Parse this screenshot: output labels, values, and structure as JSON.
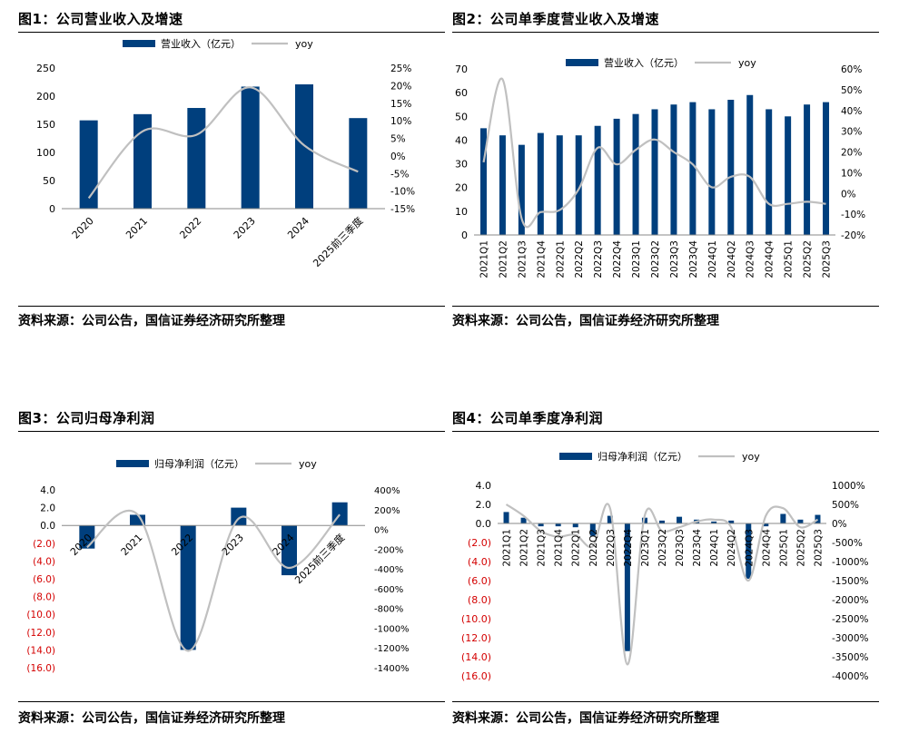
{
  "colors": {
    "bar": "#003f7d",
    "line": "#c0c0c0",
    "neg": "#d40000",
    "axis": "#000000"
  },
  "chart_data": [
    {
      "type": "bar",
      "title": "图1：公司营业收入及增速",
      "source": "资料来源：公司公告，国信证券经济研究所整理",
      "legend": {
        "bar": "营业收入（亿元）",
        "line": "yoy"
      },
      "categories": [
        "2020",
        "2021",
        "2022",
        "2023",
        "2024",
        "2025前三季度"
      ],
      "values": [
        157,
        168,
        179,
        217,
        221,
        161
      ],
      "yoy": [
        -12,
        7,
        6,
        19.5,
        3,
        -4.5
      ],
      "ylim": [
        0,
        250
      ],
      "ystep": 50,
      "y2lim": [
        -15,
        25
      ],
      "y2step": 5,
      "y_ticks": [
        "0",
        "50",
        "100",
        "150",
        "200",
        "250"
      ],
      "y2_ticks": [
        "-15%",
        "-10%",
        "-5%",
        "0%",
        "5%",
        "10%",
        "15%",
        "20%",
        "25%"
      ]
    },
    {
      "type": "bar",
      "title": "图2：公司单季度营业收入及增速",
      "source": "资料来源：公司公告，国信证券经济研究所整理",
      "legend": {
        "bar": "营业收入（亿元）",
        "line": "yoy"
      },
      "categories": [
        "2021Q1",
        "2021Q2",
        "2021Q3",
        "2021Q4",
        "2022Q1",
        "2022Q2",
        "2022Q3",
        "2022Q4",
        "2023Q1",
        "2023Q2",
        "2023Q3",
        "2023Q4",
        "2024Q1",
        "2024Q2",
        "2024Q3",
        "2024Q4",
        "2025Q1",
        "2025Q2",
        "2025Q3"
      ],
      "values": [
        45,
        42,
        38,
        43,
        42,
        42,
        46,
        49,
        51,
        53,
        55,
        56,
        53,
        57,
        59,
        53,
        50,
        55,
        56
      ],
      "yoy": [
        15,
        55,
        -12,
        -9,
        -8,
        2,
        22,
        14,
        21,
        26,
        20,
        14,
        3,
        8,
        8,
        -5,
        -5,
        -4,
        -5
      ],
      "ylim": [
        0,
        70
      ],
      "ystep": 10,
      "y2lim": [
        -20,
        60
      ],
      "y2step": 10,
      "y_ticks": [
        "0",
        "10",
        "20",
        "30",
        "40",
        "50",
        "60",
        "70"
      ],
      "y2_ticks": [
        "-20%",
        "-10%",
        "0%",
        "10%",
        "20%",
        "30%",
        "40%",
        "50%",
        "60%"
      ]
    },
    {
      "type": "bar",
      "title": "图3：公司归母净利润",
      "source": "资料来源：公司公告，国信证券经济研究所整理",
      "legend": {
        "bar": "归母净利润（亿元）",
        "line": "yoy"
      },
      "categories": [
        "2020",
        "2021",
        "2022",
        "2023",
        "2024",
        "2025前三季度"
      ],
      "values": [
        -2.6,
        1.2,
        -14,
        2.0,
        -5.6,
        2.6
      ],
      "yoy": [
        -180,
        150,
        -1230,
        110,
        -390,
        150
      ],
      "ylim": [
        -16,
        4
      ],
      "ystep": 2,
      "y2lim": [
        -1400,
        400
      ],
      "y2step": 200,
      "y_ticks": [
        "(16.0)",
        "(14.0)",
        "(12.0)",
        "(10.0)",
        "(8.0)",
        "(6.0)",
        "(4.0)",
        "(2.0)",
        "0.0",
        "2.0",
        "4.0"
      ],
      "y2_ticks": [
        "-1400%",
        "-1200%",
        "-1000%",
        "-800%",
        "-600%",
        "-400%",
        "-200%",
        "0%",
        "200%",
        "400%"
      ]
    },
    {
      "type": "bar",
      "title": "图4：公司单季度净利润",
      "source": "资料来源：公司公告，国信证券经济研究所整理",
      "legend": {
        "bar": "归母净利润（亿元）",
        "line": "yoy"
      },
      "categories": [
        "2021Q1",
        "2021Q2",
        "2021Q3",
        "2021Q4",
        "2022Q1",
        "2022Q2",
        "2022Q3",
        "2022Q4",
        "2023Q1",
        "2023Q2",
        "2023Q3",
        "2023Q4",
        "2024Q1",
        "2024Q2",
        "2024Q3",
        "2024Q4",
        "2025Q1",
        "2025Q2",
        "2025Q3"
      ],
      "values": [
        1.2,
        0.6,
        -0.3,
        -0.3,
        -0.4,
        -1.3,
        0.8,
        -13.4,
        0.6,
        0.3,
        0.7,
        0.4,
        0.2,
        0.3,
        -5.8,
        -0.3,
        1.0,
        0.4,
        0.9
      ],
      "yoy": [
        500,
        200,
        -200,
        -350,
        -300,
        -600,
        400,
        -3700,
        200,
        -200,
        -100,
        50,
        100,
        -100,
        -1500,
        200,
        400,
        -100,
        100
      ],
      "ylim": [
        -16,
        4
      ],
      "ystep": 2,
      "y2lim": [
        -4000,
        1000
      ],
      "y2step": 500,
      "y_ticks": [
        "(16.0)",
        "(14.0)",
        "(12.0)",
        "(10.0)",
        "(8.0)",
        "(6.0)",
        "(4.0)",
        "(2.0)",
        "0.0",
        "2.0",
        "4.0"
      ],
      "y2_ticks": [
        "-4000%",
        "-3500%",
        "-3000%",
        "-2500%",
        "-2000%",
        "-1500%",
        "-1000%",
        "-500%",
        "0%",
        "500%",
        "1000%"
      ]
    }
  ]
}
